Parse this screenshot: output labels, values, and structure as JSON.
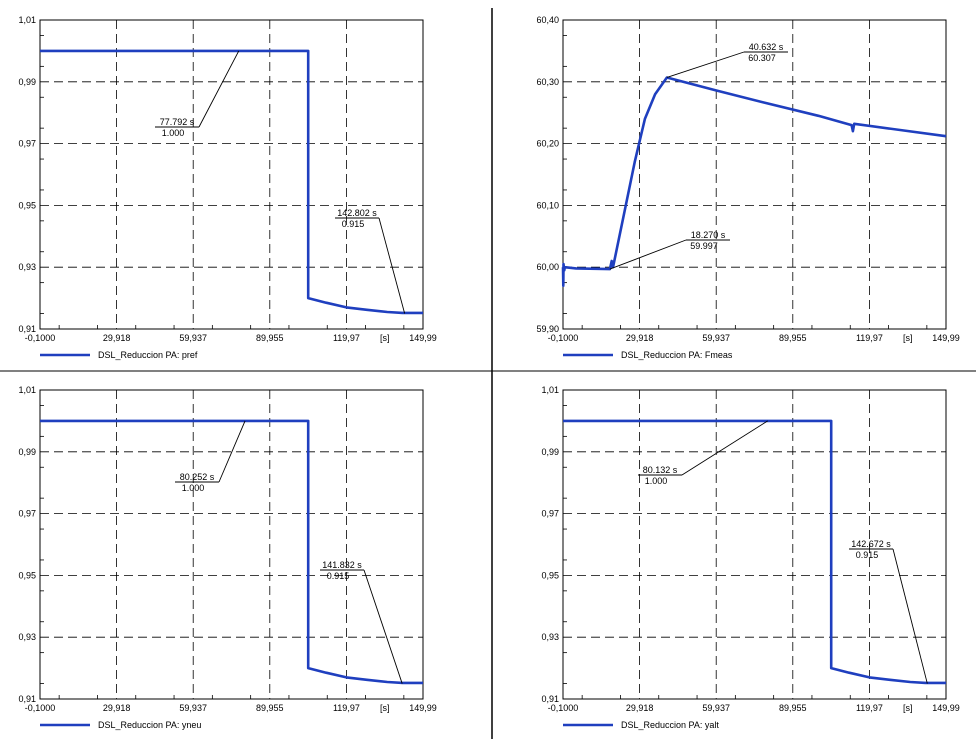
{
  "figure": {
    "series_color": "#1f3fbf",
    "x_unit": "[s]"
  },
  "chart_data": [
    {
      "type": "line",
      "panel": "top-left",
      "xlim": [
        -0.1,
        149.99
      ],
      "ylim": [
        0.91,
        1.01
      ],
      "x_ticks": [
        "-0,1000",
        "29,918",
        "59,937",
        "89,955",
        "119,97",
        "149,99"
      ],
      "y_ticks": [
        "1,01",
        "0,99",
        "0,97",
        "0,95",
        "0,93",
        "0,91"
      ],
      "grid": true,
      "legend_position": "bottom-left",
      "series": [
        {
          "name": "DSL_Reduccion PA: pref",
          "x": [
            -0.1,
            105.0,
            105.0,
            105.0,
            112.0,
            120.0,
            128.0,
            136.0,
            142.0,
            149.99
          ],
          "y": [
            1.0,
            1.0,
            1.0,
            0.92,
            0.9185,
            0.917,
            0.9162,
            0.9155,
            0.9152,
            0.9152
          ]
        }
      ],
      "annotations": [
        {
          "time": "77.792 s",
          "value": "1.000",
          "x": 77.792,
          "y": 1.0
        },
        {
          "time": "142.802 s",
          "value": "0.915",
          "x": 142.802,
          "y": 0.915
        }
      ]
    },
    {
      "type": "line",
      "panel": "top-right",
      "xlim": [
        -0.1,
        149.99
      ],
      "ylim": [
        59.9,
        60.4
      ],
      "x_ticks": [
        "-0,1000",
        "29,918",
        "59,937",
        "89,955",
        "119,97",
        "149,99"
      ],
      "y_ticks": [
        "60,40",
        "60,30",
        "60,20",
        "60,10",
        "60,00",
        "59,90"
      ],
      "grid": true,
      "legend_position": "bottom-left",
      "series": [
        {
          "name": "DSL_Reduccion PA: Fmeas",
          "x": [
            -0.1,
            0.0,
            0.1,
            0.4,
            0.6,
            5.0,
            18.27,
            19.0,
            19.5,
            20.0,
            24.0,
            28.0,
            32.0,
            36.0,
            40.632,
            60.0,
            80.0,
            100.0,
            113.0,
            113.5,
            114.0,
            149.99
          ],
          "y": [
            60.0,
            59.97,
            60.005,
            59.995,
            60.0,
            59.998,
            59.997,
            60.01,
            60.0,
            60.01,
            60.09,
            60.17,
            60.24,
            60.28,
            60.307,
            60.286,
            60.265,
            60.245,
            60.23,
            60.22,
            60.232,
            60.212
          ]
        }
      ],
      "annotations": [
        {
          "time": "40.632 s",
          "value": "60.307",
          "x": 40.632,
          "y": 60.307
        },
        {
          "time": "18.270 s",
          "value": "59.997",
          "x": 18.27,
          "y": 59.997
        }
      ]
    },
    {
      "type": "line",
      "panel": "bottom-left",
      "xlim": [
        -0.1,
        149.99
      ],
      "ylim": [
        0.91,
        1.01
      ],
      "x_ticks": [
        "-0,1000",
        "29,918",
        "59,937",
        "89,955",
        "119,97",
        "149,99"
      ],
      "y_ticks": [
        "1,01",
        "0,99",
        "0,97",
        "0,95",
        "0,93",
        "0,91"
      ],
      "grid": true,
      "legend_position": "bottom-left",
      "series": [
        {
          "name": "DSL_Reduccion PA: yneu",
          "x": [
            -0.1,
            105.0,
            105.0,
            105.0,
            112.0,
            120.0,
            128.0,
            136.0,
            142.0,
            149.99
          ],
          "y": [
            1.0,
            1.0,
            1.0,
            0.92,
            0.9185,
            0.917,
            0.9162,
            0.9155,
            0.9152,
            0.9152
          ]
        }
      ],
      "annotations": [
        {
          "time": "80.252 s",
          "value": "1.000",
          "x": 80.252,
          "y": 1.0
        },
        {
          "time": "141.832 s",
          "value": "0.915",
          "x": 141.832,
          "y": 0.915
        }
      ]
    },
    {
      "type": "line",
      "panel": "bottom-right",
      "xlim": [
        -0.1,
        149.99
      ],
      "ylim": [
        0.91,
        1.01
      ],
      "x_ticks": [
        "-0,1000",
        "29,918",
        "59,937",
        "89,955",
        "119,97",
        "149,99"
      ],
      "y_ticks": [
        "1,01",
        "0,99",
        "0,97",
        "0,95",
        "0,93",
        "0,91"
      ],
      "grid": true,
      "legend_position": "bottom-left",
      "series": [
        {
          "name": "DSL_Reduccion PA: yalt",
          "x": [
            -0.1,
            105.0,
            105.0,
            105.0,
            112.0,
            120.0,
            128.0,
            136.0,
            142.0,
            149.99
          ],
          "y": [
            1.0,
            1.0,
            1.0,
            0.92,
            0.9185,
            0.917,
            0.9162,
            0.9155,
            0.9152,
            0.9152
          ]
        }
      ],
      "annotations": [
        {
          "time": "80.132 s",
          "value": "1.000",
          "x": 80.132,
          "y": 1.0
        },
        {
          "time": "142.672 s",
          "value": "0.915",
          "x": 142.672,
          "y": 0.915
        }
      ]
    }
  ]
}
